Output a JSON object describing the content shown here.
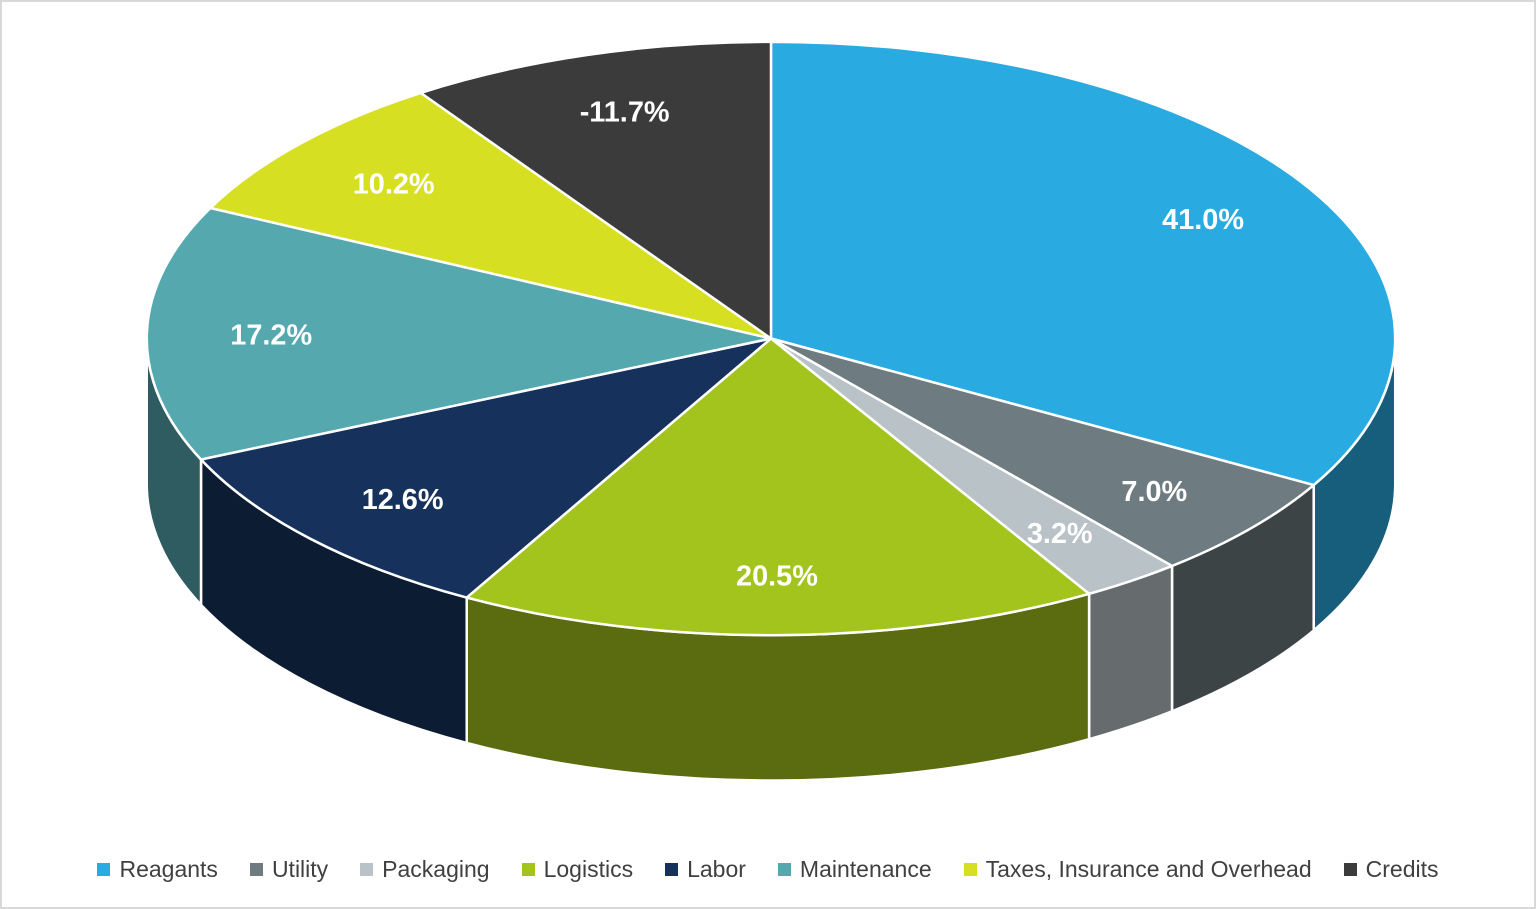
{
  "chart_data": {
    "type": "pie",
    "subtype": "pie-3d",
    "title": "",
    "legend_position": "bottom",
    "start_angle_deg": 0,
    "direction": "clockwise",
    "label_color": "#FFFFFF",
    "slices": [
      {
        "label": "Reagants",
        "value_pct": 41.0,
        "display": "41.0%",
        "color": "#29ABE2"
      },
      {
        "label": "Utility",
        "value_pct": 7.0,
        "display": "7.0%",
        "color": "#6E7B80"
      },
      {
        "label": "Packaging",
        "value_pct": 3.2,
        "display": "3.2%",
        "color": "#B9C2C6"
      },
      {
        "label": "Logistics",
        "value_pct": 20.5,
        "display": "20.5%",
        "color": "#A3C31D"
      },
      {
        "label": "Labor",
        "value_pct": 12.6,
        "display": "12.6%",
        "color": "#16325C"
      },
      {
        "label": "Maintenance",
        "value_pct": 17.2,
        "display": "17.2%",
        "color": "#55A8AE"
      },
      {
        "label": "Taxes, Insurance and Overhead",
        "value_pct": 10.2,
        "display": "10.2%",
        "color": "#D7DF23"
      },
      {
        "label": "Credits",
        "value_pct": -11.7,
        "display": "-11.7%",
        "color": "#3B3B3B"
      }
    ]
  }
}
